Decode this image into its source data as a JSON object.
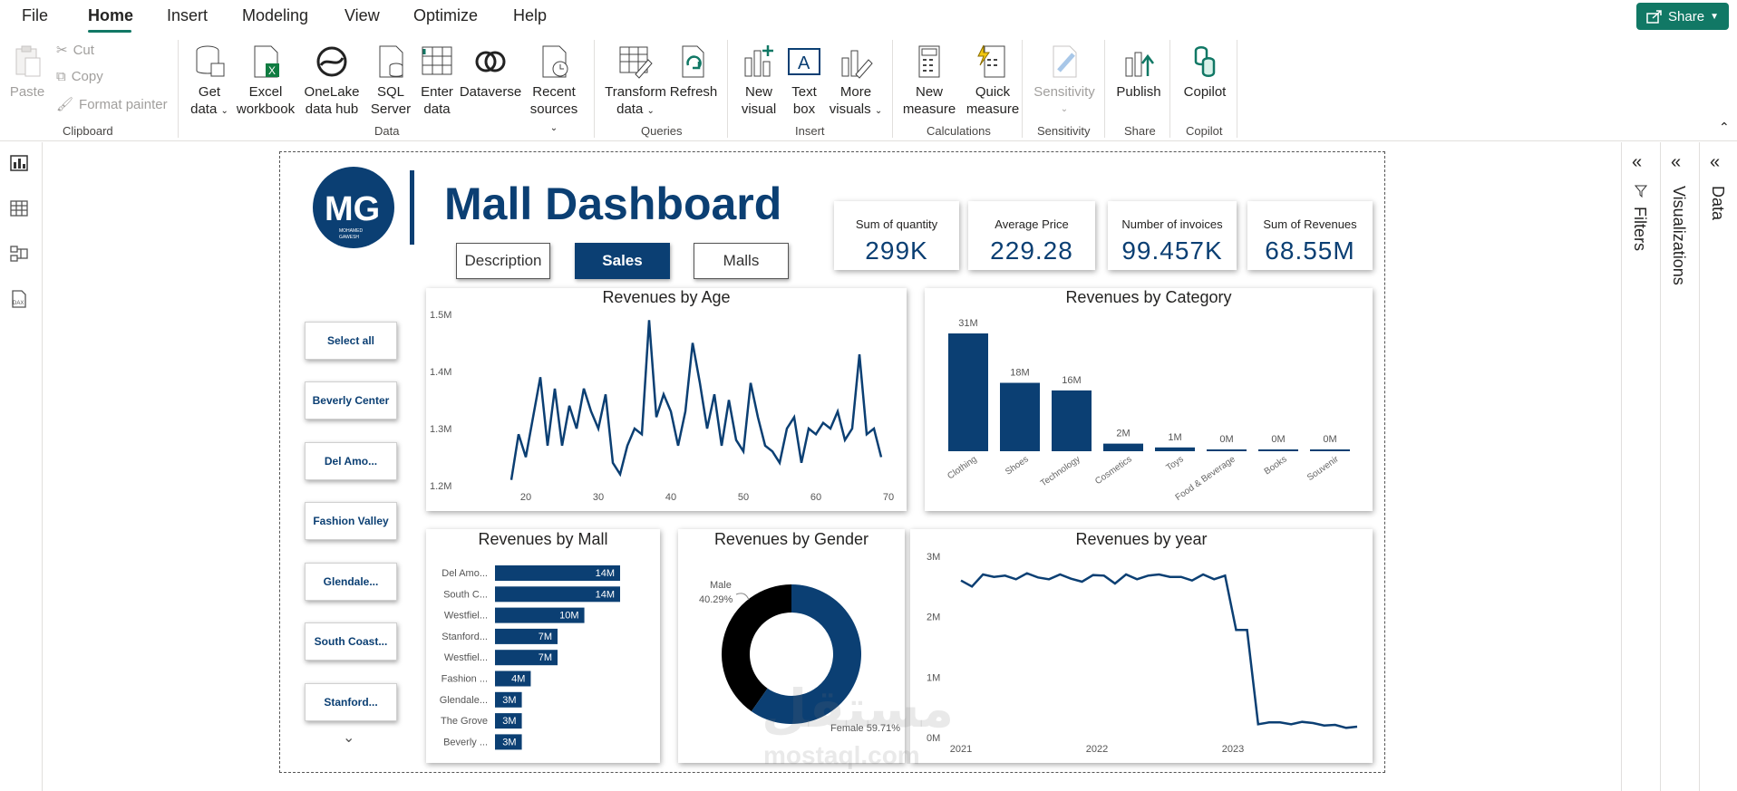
{
  "menu": {
    "file": "File",
    "home": "Home",
    "insert": "Insert",
    "modeling": "Modeling",
    "view": "View",
    "optimize": "Optimize",
    "help": "Help"
  },
  "share": {
    "label": "Share"
  },
  "ribbon": {
    "clipboard": {
      "paste": "Paste",
      "cut": "Cut",
      "copy": "Copy",
      "format_painter": "Format painter",
      "label": "Clipboard"
    },
    "data": {
      "get_data_1": "Get",
      "get_data_2": "data",
      "excel_1": "Excel",
      "excel_2": "workbook",
      "onelake_1": "OneLake",
      "onelake_2": "data hub",
      "sql_1": "SQL",
      "sql_2": "Server",
      "enter_1": "Enter",
      "enter_2": "data",
      "dataverse": "Dataverse",
      "recent_1": "Recent",
      "recent_2": "sources",
      "label": "Data"
    },
    "queries": {
      "transform_1": "Transform",
      "transform_2": "data",
      "refresh": "Refresh",
      "label": "Queries"
    },
    "insert": {
      "new_visual_1": "New",
      "new_visual_2": "visual",
      "text_box_1": "Text",
      "text_box_2": "box",
      "more_visuals_1": "More",
      "more_visuals_2": "visuals",
      "label": "Insert"
    },
    "calculations": {
      "new_measure_1": "New",
      "new_measure_2": "measure",
      "quick_measure_1": "Quick",
      "quick_measure_2": "measure",
      "label": "Calculations"
    },
    "sensitivity": {
      "sensitivity": "Sensitivity",
      "label": "Sensitivity"
    },
    "share": {
      "publish": "Publish",
      "label": "Share"
    },
    "copilot": {
      "copilot": "Copilot",
      "label": "Copilot"
    }
  },
  "panes": {
    "filters": "Filters",
    "visualizations": "Visualizations",
    "data": "Data"
  },
  "dashboard": {
    "logo_initials": "MG",
    "logo_sub_1": "MOHAMED",
    "logo_sub_2": "GAWESH",
    "title": "Mall Dashboard",
    "tabs": [
      "Description",
      "Sales",
      "Malls"
    ],
    "kpis": [
      {
        "label": "Sum of quantity",
        "value": "299K"
      },
      {
        "label": "Average Price",
        "value": "229.28"
      },
      {
        "label": "Number of invoices",
        "value": "99.457K"
      },
      {
        "label": "Sum of Revenues",
        "value": "68.55M"
      }
    ],
    "slicer": [
      "Select all",
      "Beverly Center",
      "Del Amo...",
      "Fashion Valley",
      "Glendale...",
      "South Coast...",
      "Stanford..."
    ],
    "watermark_1": "مستقل",
    "watermark_2": "mostaql.com"
  },
  "colors": {
    "accent": "#117865",
    "navy": "#0b3f73",
    "black": "#000000"
  },
  "chart_data": [
    {
      "type": "line",
      "title": "Revenues by Age",
      "x": [
        18,
        19,
        20,
        21,
        22,
        23,
        24,
        25,
        26,
        27,
        28,
        29,
        30,
        31,
        32,
        33,
        34,
        35,
        36,
        37,
        38,
        39,
        40,
        41,
        42,
        43,
        44,
        45,
        46,
        47,
        48,
        49,
        50,
        51,
        52,
        53,
        54,
        55,
        56,
        57,
        58,
        59,
        60,
        61,
        62,
        63,
        64,
        65,
        66,
        67,
        68,
        69
      ],
      "values": [
        1.21,
        1.29,
        1.25,
        1.32,
        1.39,
        1.27,
        1.37,
        1.27,
        1.34,
        1.3,
        1.37,
        1.33,
        1.3,
        1.36,
        1.24,
        1.22,
        1.27,
        1.3,
        1.29,
        1.49,
        1.32,
        1.36,
        1.33,
        1.27,
        1.33,
        1.45,
        1.38,
        1.3,
        1.36,
        1.27,
        1.35,
        1.28,
        1.26,
        1.38,
        1.32,
        1.27,
        1.26,
        1.24,
        1.3,
        1.32,
        1.24,
        1.3,
        1.29,
        1.31,
        1.3,
        1.33,
        1.28,
        1.3,
        1.43,
        1.29,
        1.3,
        1.25
      ],
      "xticks": [
        "20",
        "30",
        "40",
        "50",
        "60",
        "70"
      ],
      "yticks": [
        "1.5M",
        "1.4M",
        "1.3M",
        "1.2M"
      ],
      "ylim": [
        1.2,
        1.5
      ]
    },
    {
      "type": "bar",
      "title": "Revenues by Category",
      "categories": [
        "Clothing",
        "Shoes",
        "Technology",
        "Cosmetics",
        "Toys",
        "Food & Beverage",
        "Books",
        "Souvenir"
      ],
      "values": [
        31,
        18,
        16,
        2,
        1,
        0.3,
        0.2,
        0.1
      ],
      "labels": [
        "31M",
        "18M",
        "16M",
        "2M",
        "1M",
        "0M",
        "0M",
        "0M"
      ]
    },
    {
      "type": "bar",
      "title": "Revenues by Mall",
      "categories": [
        "Del Amo...",
        "South C...",
        "Westfiel...",
        "Stanford...",
        "Westfiel...",
        "Fashion ...",
        "Glendale...",
        "The Grove",
        "Beverly ..."
      ],
      "values": [
        14,
        14,
        10,
        7,
        7,
        4,
        3,
        3,
        3
      ],
      "labels": [
        "14M",
        "14M",
        "10M",
        "7M",
        "7M",
        "4M",
        "3M",
        "3M",
        "3M"
      ]
    },
    {
      "type": "pie",
      "title": "Revenues by Gender",
      "categories": [
        "Male",
        "Female"
      ],
      "values": [
        40.29,
        59.71
      ],
      "labels": [
        "Male 40.29%",
        "Female 59.71%"
      ]
    },
    {
      "type": "line",
      "title": "Revenues by year",
      "values": [
        2.6,
        2.5,
        2.7,
        2.66,
        2.68,
        2.62,
        2.72,
        2.65,
        2.62,
        2.7,
        2.63,
        2.58,
        2.69,
        2.68,
        2.55,
        2.7,
        2.62,
        2.68,
        2.7,
        2.66,
        2.66,
        2.6,
        2.7,
        2.62,
        2.68,
        1.78,
        1.78,
        0.22,
        0.25,
        0.25,
        0.22,
        0.26,
        0.24,
        0.2,
        0.21,
        0.16,
        0.18
      ],
      "xticks": [
        "2021",
        "2022",
        "2023"
      ],
      "yticks": [
        "3M",
        "2M",
        "1M",
        "0M"
      ],
      "ylim": [
        0,
        3
      ]
    }
  ]
}
